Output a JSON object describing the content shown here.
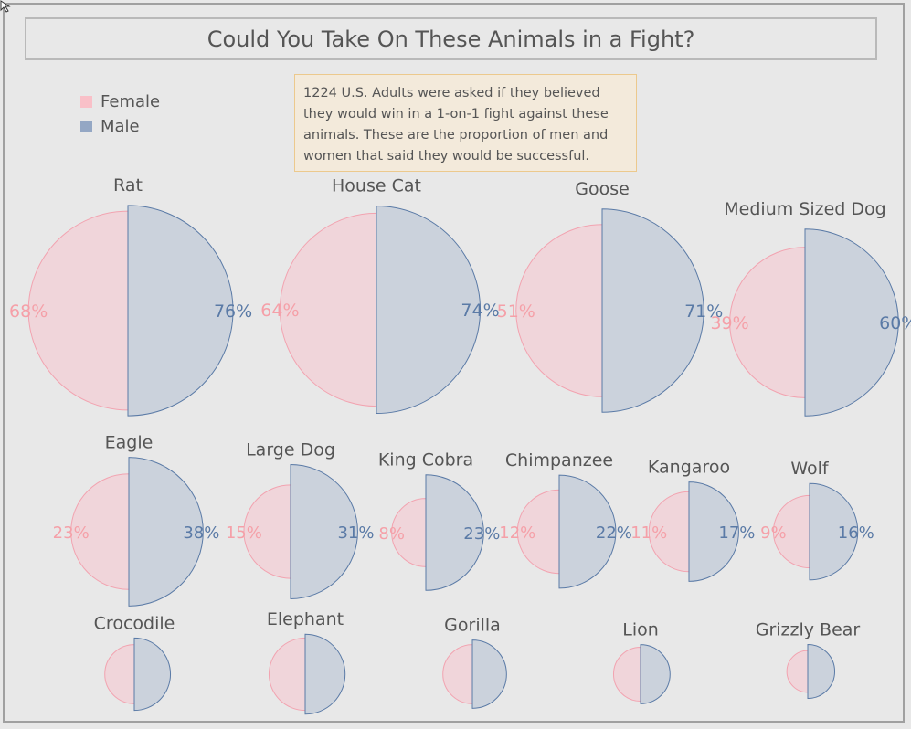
{
  "title": "Could You Take On These Animals in a Fight?",
  "legend": {
    "items": [
      {
        "label": "Female",
        "color": "#f9c0c8"
      },
      {
        "label": "Male",
        "color": "#94a7c4"
      }
    ]
  },
  "note": "1224 U.S. Adults were asked if they believed they would win in a 1-on-1 fight against these animals. These are the proportion of men and women that said they would be successful.",
  "colors": {
    "female_fill": "#f0d5da",
    "female_stroke": "#f2a3b0",
    "female_text": "#f5a0a8",
    "male_fill": "#cbd2dc",
    "male_stroke": "#5a7aa6",
    "male_text": "#5a7aa6",
    "label_text": "#555555"
  },
  "chart_data": {
    "type": "half-circle area comparison",
    "title": "Could You Take On These Animals in a Fight?",
    "series": [
      {
        "name": "Female"
      },
      {
        "name": "Male"
      }
    ],
    "categories": [
      "Rat",
      "House Cat",
      "Goose",
      "Medium Sized Dog",
      "Eagle",
      "Large Dog",
      "King Cobra",
      "Chimpanzee",
      "Kangaroo",
      "Wolf",
      "Crocodile",
      "Elephant",
      "Gorilla",
      "Lion",
      "Grizzly Bear"
    ],
    "animals": [
      {
        "name": "Rat",
        "female": 68,
        "male": 76,
        "female_label": "68%",
        "male_label": "76%"
      },
      {
        "name": "House Cat",
        "female": 64,
        "male": 74,
        "female_label": "64%",
        "male_label": "74%"
      },
      {
        "name": "Goose",
        "female": 51,
        "male": 71,
        "female_label": "51%",
        "male_label": "71%"
      },
      {
        "name": "Medium Sized Dog",
        "female": 39,
        "male": 60,
        "female_label": "39%",
        "male_label": "60%"
      },
      {
        "name": "Eagle",
        "female": 23,
        "male": 38,
        "female_label": "23%",
        "male_label": "38%"
      },
      {
        "name": "Large Dog",
        "female": 15,
        "male": 31,
        "female_label": "15%",
        "male_label": "31%"
      },
      {
        "name": "King Cobra",
        "female": 8,
        "male": 23,
        "female_label": "8%",
        "male_label": "23%"
      },
      {
        "name": "Chimpanzee",
        "female": 12,
        "male": 22,
        "female_label": "12%",
        "male_label": "22%"
      },
      {
        "name": "Kangaroo",
        "female": 11,
        "male": 17,
        "female_label": "11%",
        "male_label": "17%"
      },
      {
        "name": "Wolf",
        "female": 9,
        "male": 16,
        "female_label": "9%",
        "male_label": "16%"
      },
      {
        "name": "Crocodile",
        "female": 6,
        "male": 9
      },
      {
        "name": "Elephant",
        "female": 9,
        "male": 11
      },
      {
        "name": "Gorilla",
        "female": 6,
        "male": 8
      },
      {
        "name": "Lion",
        "female": 5,
        "male": 6
      },
      {
        "name": "Grizzly Bear",
        "female": 3,
        "male": 5
      }
    ]
  }
}
